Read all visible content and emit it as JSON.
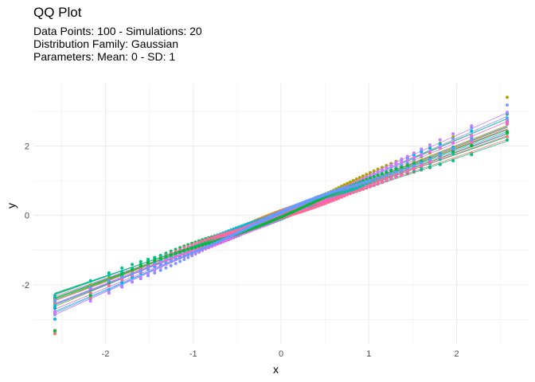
{
  "chart_data": {
    "type": "scatter",
    "title": "QQ Plot",
    "subtitle": [
      "Data Points: 100 - Simulations: 20",
      "Distribution Family: Gaussian",
      "Parameters: Mean: 0 - SD: 1"
    ],
    "xlabel": "x",
    "ylabel": "y",
    "xlim": [
      -2.82,
      2.82
    ],
    "ylim": [
      -3.7,
      3.8
    ],
    "x_ticks": [
      -2,
      -1,
      0,
      1,
      2
    ],
    "y_ticks": [
      -2,
      0,
      2
    ],
    "grid": true,
    "legend": "none",
    "n_points": 100,
    "n_simulations": 20,
    "series": [
      {
        "color": "#f8766d",
        "intercept": -0.03,
        "slope": 0.86,
        "min": -3.45,
        "max": 2.3
      },
      {
        "color": "#e7851e",
        "intercept": 0.05,
        "slope": 0.95,
        "min": -2.5,
        "max": 2.85
      },
      {
        "color": "#d09400",
        "intercept": 0.02,
        "slope": 1.0,
        "min": -2.6,
        "max": 2.7
      },
      {
        "color": "#b2a100",
        "intercept": 0.08,
        "slope": 1.05,
        "min": -2.45,
        "max": 3.5
      },
      {
        "color": "#89ac00",
        "intercept": 0.04,
        "slope": 0.97,
        "min": -2.55,
        "max": 2.9
      },
      {
        "color": "#45b500",
        "intercept": -0.02,
        "slope": 0.92,
        "min": -2.45,
        "max": 2.55
      },
      {
        "color": "#00bc51",
        "intercept": 0.0,
        "slope": 0.88,
        "min": -2.7,
        "max": 2.4
      },
      {
        "color": "#00c087",
        "intercept": -0.05,
        "slope": 0.85,
        "min": -2.35,
        "max": 2.25
      },
      {
        "color": "#00c0af",
        "intercept": 0.03,
        "slope": 0.9,
        "min": -2.4,
        "max": 2.6
      },
      {
        "color": "#00bcd4",
        "intercept": 0.02,
        "slope": 0.93,
        "min": -2.6,
        "max": 2.65
      },
      {
        "color": "#00b5ee",
        "intercept": 0.01,
        "slope": 1.08,
        "min": -2.9,
        "max": 3.0
      },
      {
        "color": "#00a7ff",
        "intercept": -0.01,
        "slope": 1.0,
        "min": -2.7,
        "max": 2.85
      },
      {
        "color": "#7f96ff",
        "intercept": 0.02,
        "slope": 1.1,
        "min": -2.95,
        "max": 3.1
      },
      {
        "color": "#bc81ff",
        "intercept": 0.05,
        "slope": 1.13,
        "min": -2.8,
        "max": 2.95
      },
      {
        "color": "#e26ef7",
        "intercept": 0.0,
        "slope": 1.05,
        "min": -2.7,
        "max": 2.85
      },
      {
        "color": "#f863df",
        "intercept": -0.03,
        "slope": 0.98,
        "min": -2.55,
        "max": 2.7
      },
      {
        "color": "#ff62bc",
        "intercept": -0.04,
        "slope": 0.94,
        "min": -2.5,
        "max": 2.55
      },
      {
        "color": "#ff6a98",
        "intercept": -0.02,
        "slope": 0.9,
        "min": -3.25,
        "max": 2.45
      },
      {
        "color": "#00ba38",
        "intercept": 0.02,
        "slope": 0.95,
        "min": -3.3,
        "max": 2.5
      },
      {
        "color": "#619cff",
        "intercept": 0.01,
        "slope": 0.99,
        "min": -2.55,
        "max": 2.75
      }
    ]
  }
}
